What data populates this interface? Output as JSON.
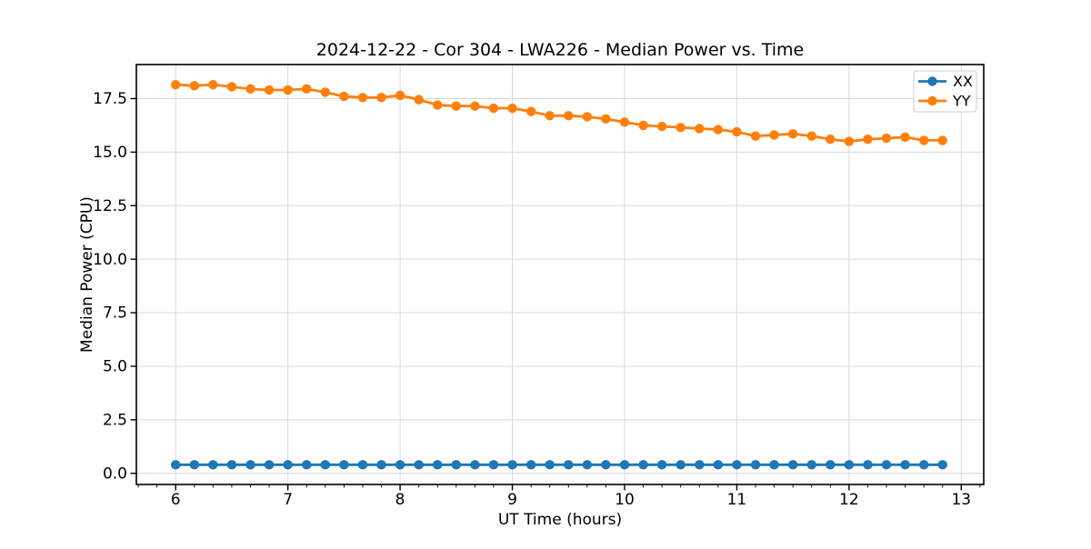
{
  "figure": {
    "background": "#ffffff"
  },
  "chart_data": {
    "type": "line",
    "title": "2024-12-22 - Cor 304 - LWA226 - Median Power vs. Time",
    "xlabel": "UT Time (hours)",
    "ylabel": "Median Power (CPU)",
    "xlim": [
      5.65,
      13.2
    ],
    "ylim": [
      -0.52,
      19.09
    ],
    "xticks": [
      6,
      7,
      8,
      9,
      10,
      11,
      12,
      13
    ],
    "xtick_labels": [
      "6",
      "7",
      "8",
      "9",
      "10",
      "11",
      "12",
      "13"
    ],
    "yticks": [
      0,
      2.5,
      5,
      7.5,
      10,
      12.5,
      15,
      17.5
    ],
    "ytick_labels": [
      "0.0",
      "2.5",
      "5.0",
      "7.5",
      "10.0",
      "12.5",
      "15.0",
      "17.5"
    ],
    "x_minor_tick_step": 0.1666667,
    "grid": true,
    "grid_color": "#d9d9d9",
    "legend": {
      "position": "upper right"
    },
    "x": [
      6.0,
      6.167,
      6.333,
      6.5,
      6.667,
      6.833,
      7.0,
      7.167,
      7.333,
      7.5,
      7.667,
      7.833,
      8.0,
      8.167,
      8.333,
      8.5,
      8.667,
      8.833,
      9.0,
      9.167,
      9.333,
      9.5,
      9.667,
      9.833,
      10.0,
      10.167,
      10.333,
      10.5,
      10.667,
      10.833,
      11.0,
      11.167,
      11.333,
      11.5,
      11.667,
      11.833,
      12.0,
      12.167,
      12.333,
      12.5,
      12.667,
      12.833
    ],
    "series": [
      {
        "name": "XX",
        "color": "#1f77b4",
        "values": [
          0.4,
          0.4,
          0.4,
          0.4,
          0.4,
          0.4,
          0.4,
          0.4,
          0.4,
          0.4,
          0.4,
          0.4,
          0.4,
          0.4,
          0.4,
          0.4,
          0.4,
          0.4,
          0.4,
          0.4,
          0.4,
          0.4,
          0.4,
          0.4,
          0.4,
          0.4,
          0.4,
          0.4,
          0.4,
          0.4,
          0.4,
          0.4,
          0.4,
          0.4,
          0.4,
          0.4,
          0.4,
          0.4,
          0.4,
          0.4,
          0.4,
          0.4
        ]
      },
      {
        "name": "YY",
        "color": "#ff7f0e",
        "values": [
          18.15,
          18.1,
          18.15,
          18.05,
          17.95,
          17.9,
          17.9,
          17.95,
          17.8,
          17.6,
          17.55,
          17.55,
          17.65,
          17.45,
          17.2,
          17.15,
          17.15,
          17.05,
          17.05,
          16.9,
          16.7,
          16.7,
          16.65,
          16.55,
          16.4,
          16.25,
          16.2,
          16.15,
          16.1,
          16.05,
          15.95,
          15.75,
          15.8,
          15.85,
          15.75,
          15.6,
          15.5,
          15.6,
          15.65,
          15.7,
          15.55,
          15.55
        ]
      }
    ]
  }
}
